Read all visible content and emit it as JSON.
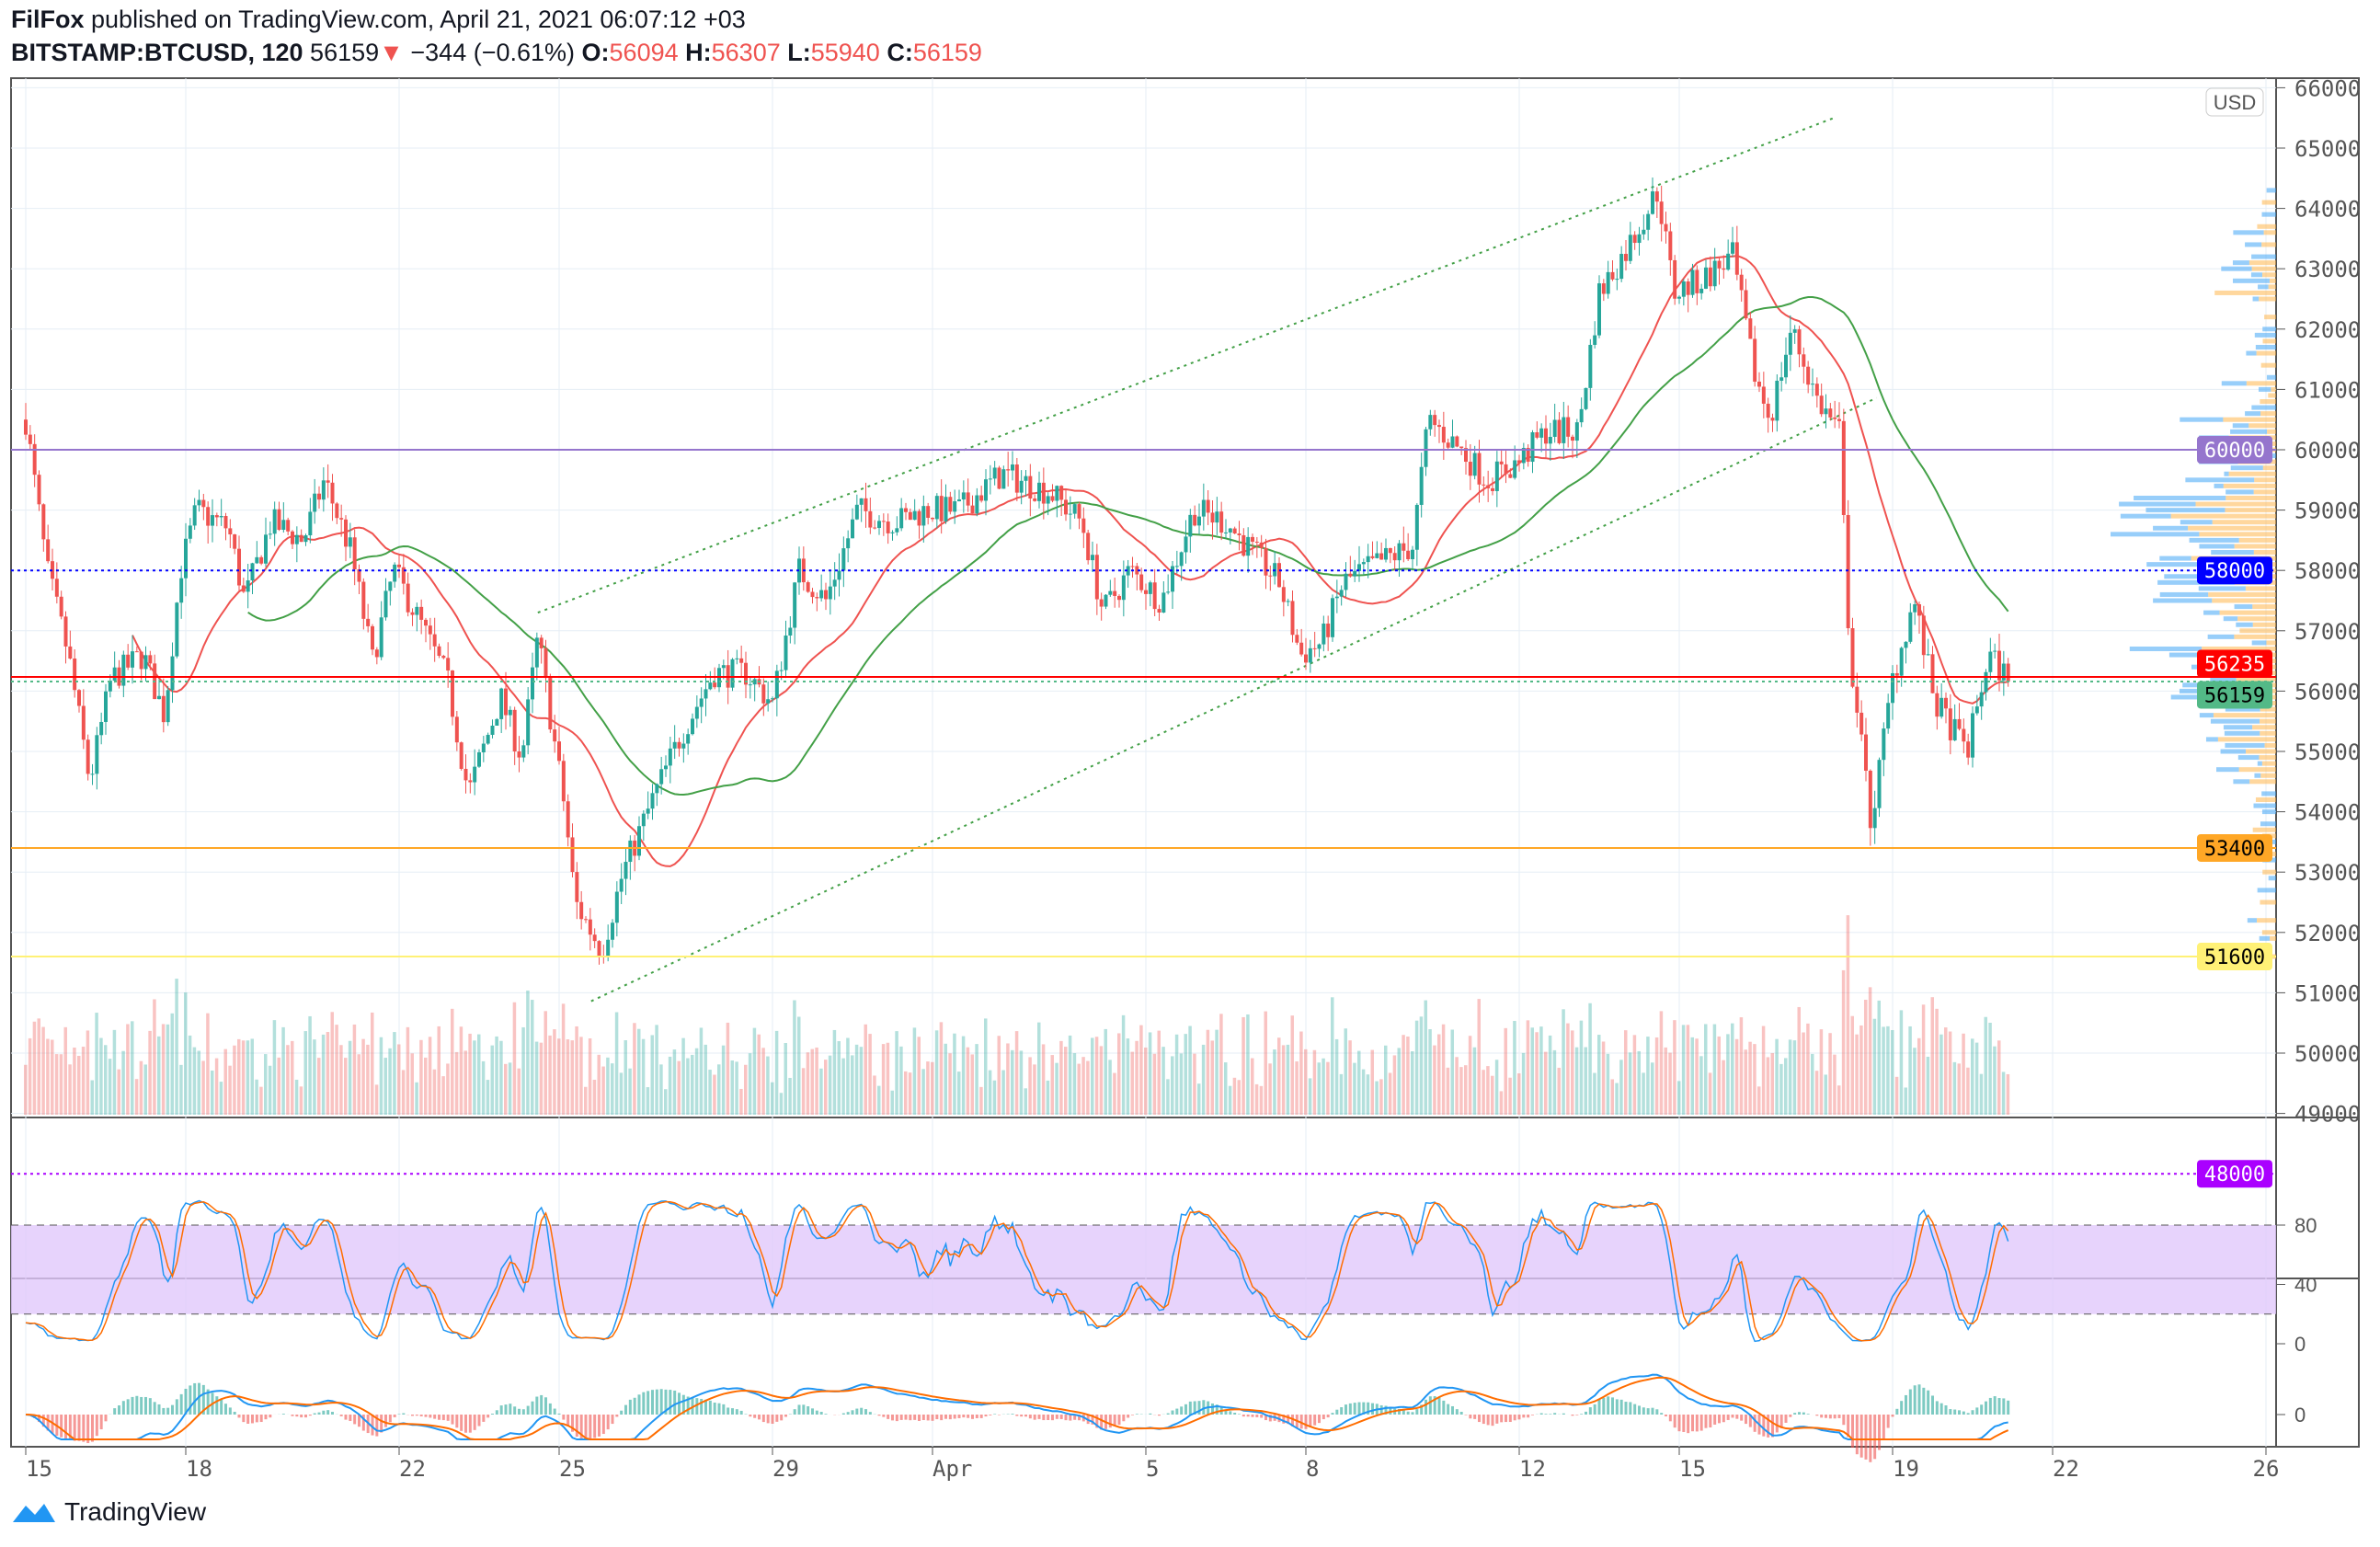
{
  "header": {
    "author": "FilFox",
    "published": "published on TradingView.com, April 21, 2021 06:07:12 +03",
    "symbol": "BITSTAMP:BTCUSD, 120",
    "last": "56159",
    "arrow": "▼",
    "change": "−344 (−0.61%)",
    "o_label": "O:",
    "o": "56094",
    "h_label": "H:",
    "h": "56307",
    "l_label": "L:",
    "l": "55940",
    "c_label": "C:",
    "c": "56159"
  },
  "footer": {
    "brand": "TradingView"
  },
  "chart_data": {
    "type": "candlestick",
    "symbol": "BITSTAMP:BTCUSD",
    "interval_minutes": 120,
    "currency": "USD",
    "ylim": [
      47800,
      66200
    ],
    "y_ticks": [
      49000,
      50000,
      51000,
      52000,
      53000,
      54000,
      55000,
      56000,
      57000,
      58000,
      59000,
      60000,
      61000,
      62000,
      63000,
      64000,
      65000,
      66000
    ],
    "x_ticks": [
      {
        "day": 0,
        "label": "15"
      },
      {
        "day": 3,
        "label": "18"
      },
      {
        "day": 7,
        "label": "22"
      },
      {
        "day": 10,
        "label": "25"
      },
      {
        "day": 14,
        "label": "29"
      },
      {
        "day": 17,
        "label": "Apr"
      },
      {
        "day": 21,
        "label": "5"
      },
      {
        "day": 24,
        "label": "8"
      },
      {
        "day": 28,
        "label": "12"
      },
      {
        "day": 31,
        "label": "15"
      },
      {
        "day": 35,
        "label": "19"
      },
      {
        "day": 38,
        "label": "22"
      },
      {
        "day": 42,
        "label": "26"
      }
    ],
    "x_unit": "days since Mar 15 2021",
    "close_path": [
      [
        0,
        60500
      ],
      [
        0.4,
        58000
      ],
      [
        0.8,
        56600
      ],
      [
        1.2,
        54500
      ],
      [
        1.6,
        56200
      ],
      [
        2.2,
        56600
      ],
      [
        2.6,
        55600
      ],
      [
        2.9,
        58000
      ],
      [
        3.2,
        59000
      ],
      [
        3.8,
        58700
      ],
      [
        4.1,
        57500
      ],
      [
        4.6,
        58800
      ],
      [
        5.2,
        58500
      ],
      [
        5.6,
        59500
      ],
      [
        6.1,
        58300
      ],
      [
        6.5,
        56500
      ],
      [
        6.9,
        58000
      ],
      [
        7.3,
        57300
      ],
      [
        7.9,
        56200
      ],
      [
        8.3,
        54300
      ],
      [
        8.9,
        55900
      ],
      [
        9.3,
        54900
      ],
      [
        9.6,
        56900
      ],
      [
        10.1,
        54100
      ],
      [
        10.3,
        52500
      ],
      [
        10.8,
        51700
      ],
      [
        11.2,
        53000
      ],
      [
        11.8,
        54300
      ],
      [
        12.3,
        55300
      ],
      [
        12.9,
        56300
      ],
      [
        13.5,
        56300
      ],
      [
        14,
        55800
      ],
      [
        14.5,
        58000
      ],
      [
        15,
        57500
      ],
      [
        15.6,
        59000
      ],
      [
        16.3,
        58800
      ],
      [
        16.9,
        59000
      ],
      [
        17.5,
        59000
      ],
      [
        18.3,
        59600
      ],
      [
        19.2,
        59300
      ],
      [
        19.8,
        58800
      ],
      [
        20.2,
        57300
      ],
      [
        20.7,
        58000
      ],
      [
        21.3,
        57500
      ],
      [
        21.9,
        59000
      ],
      [
        22.5,
        58800
      ],
      [
        23,
        58300
      ],
      [
        23.5,
        57800
      ],
      [
        23.9,
        56600
      ],
      [
        24.3,
        56800
      ],
      [
        24.7,
        57800
      ],
      [
        25.3,
        58100
      ],
      [
        26,
        58400
      ],
      [
        26.3,
        60500
      ],
      [
        26.9,
        60000
      ],
      [
        27.4,
        59500
      ],
      [
        28,
        59800
      ],
      [
        28.5,
        60300
      ],
      [
        29.1,
        60300
      ],
      [
        29.5,
        62600
      ],
      [
        30,
        63300
      ],
      [
        30.6,
        64300
      ],
      [
        30.9,
        62600
      ],
      [
        31.4,
        62800
      ],
      [
        32,
        63200
      ],
      [
        32.4,
        61300
      ],
      [
        32.7,
        60500
      ],
      [
        33.1,
        62000
      ],
      [
        33.6,
        60800
      ],
      [
        34,
        60300
      ],
      [
        34.2,
        56600
      ],
      [
        34.6,
        53800
      ],
      [
        35,
        56200
      ],
      [
        35.4,
        57500
      ],
      [
        35.8,
        55800
      ],
      [
        36.4,
        55000
      ],
      [
        36.8,
        56600
      ],
      [
        37.2,
        56159
      ]
    ],
    "levels": [
      {
        "price": 60000,
        "label": "60000",
        "color": "#9575cd",
        "style": "solid"
      },
      {
        "price": 58000,
        "label": "58000",
        "color": "#0000ff",
        "style": "dotted"
      },
      {
        "price": 56235,
        "label": "56235",
        "color": "#ff0000",
        "style": "solid"
      },
      {
        "price": 56159,
        "label": "56159",
        "color": "#53b987",
        "style": "dotted"
      },
      {
        "price": 53400,
        "label": "53400",
        "color": "#ffa726",
        "style": "solid"
      },
      {
        "price": 51600,
        "label": "51600",
        "color": "#fff176",
        "style": "solid"
      },
      {
        "price": 48000,
        "label": "48000",
        "color": "#aa00ff",
        "style": "dotted"
      }
    ],
    "channel": [
      {
        "from": [
          9.6,
          57300
        ],
        "to": [
          33.9,
          65500
        ]
      },
      {
        "from": [
          10.6,
          50860
        ],
        "to": [
          34.7,
          60860
        ]
      }
    ],
    "moving_averages": [
      {
        "name": "MA fast",
        "period": 24,
        "color": "#ef5350"
      },
      {
        "name": "MA slow",
        "period": 50,
        "color": "#43a047"
      }
    ],
    "oscillator": {
      "ticks": [
        "80",
        "40",
        "0"
      ],
      "band": [
        20,
        80
      ]
    },
    "macd": {
      "ticks": [
        "0"
      ]
    },
    "axis_badge": "USD",
    "colors": {
      "up": "#26a69a",
      "down": "#ef5350",
      "profile_up": "#42a5f5",
      "profile_down": "#ffb74d"
    }
  }
}
